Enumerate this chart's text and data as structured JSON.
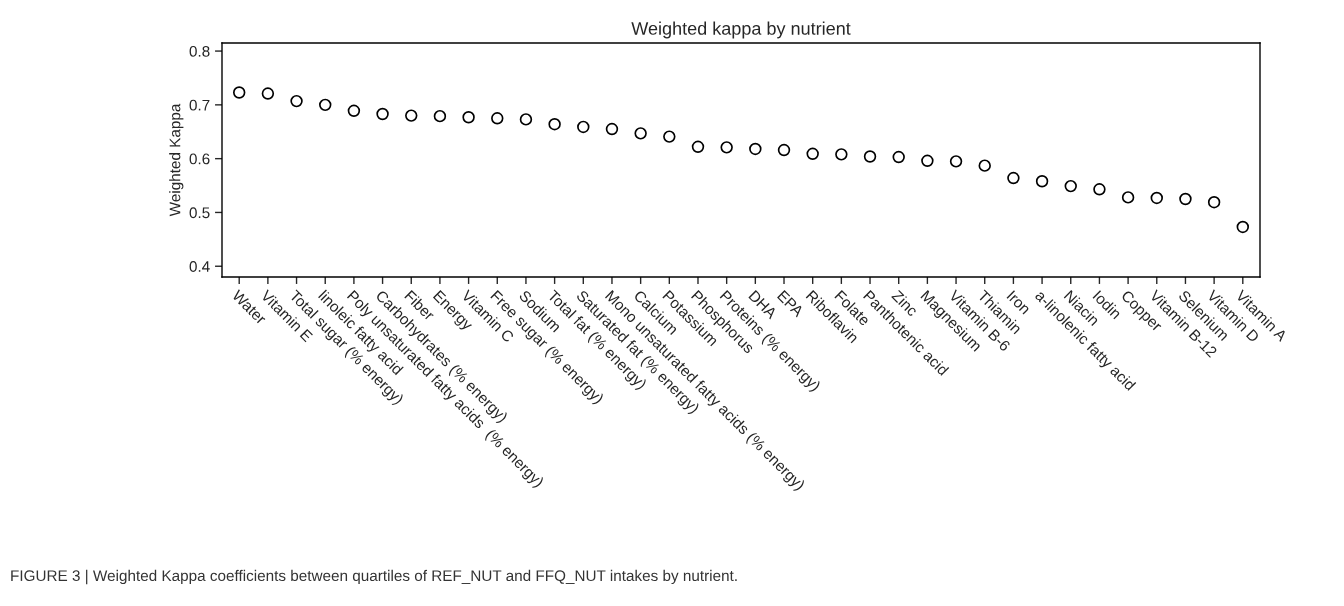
{
  "chart_data": {
    "type": "scatter",
    "title": "Weighted kappa by nutrient",
    "ylabel": "Weighted Kappa",
    "categories": [
      "Water",
      "Vitamin E",
      "Total sugar (% energy)",
      "linoleic fatty acid",
      "Poly unsaturated fatty acids  (% energy)",
      "Carbohydrates (% energy)",
      "Fiber",
      "Energy",
      "Vitamin C",
      "Free sugar (% energy)",
      "Sodium",
      "Total fat (% energy)",
      "Saturated fat (% energy)",
      "Mono unsaturated fatty acids (% energy)",
      "Calcium",
      "Potassium",
      "Phosphorus",
      "Proteins (% energy)",
      "DHA",
      "EPA",
      "Riboflavin",
      "Folate",
      "Panthotenic acid",
      "Zinc",
      "Magnesium",
      "Vitamin B-6",
      "Thiamin",
      "Iron",
      "a-linolenic fatty acid",
      "Niacin",
      "Iodin",
      "Copper",
      "Vitamin B-12",
      "Selenium",
      "Vitamin D",
      "Vitamin A"
    ],
    "values": [
      0.723,
      0.721,
      0.707,
      0.7,
      0.689,
      0.683,
      0.68,
      0.679,
      0.677,
      0.675,
      0.673,
      0.664,
      0.659,
      0.655,
      0.647,
      0.641,
      0.622,
      0.621,
      0.618,
      0.616,
      0.609,
      0.608,
      0.604,
      0.603,
      0.596,
      0.595,
      0.587,
      0.564,
      0.558,
      0.549,
      0.543,
      0.528,
      0.527,
      0.525,
      0.519,
      0.473
    ],
    "color": "#000000",
    "marker": "circle",
    "ylim": [
      0.38,
      0.815
    ],
    "yticks": [
      0.4,
      0.5,
      0.6,
      0.7,
      0.8
    ],
    "grid": false,
    "legend": false,
    "annotations": [
      "FIGURE 3 | Weighted Kappa coefficients between quartiles of REF_NUT and FFQ_NUT intakes by nutrient."
    ]
  }
}
